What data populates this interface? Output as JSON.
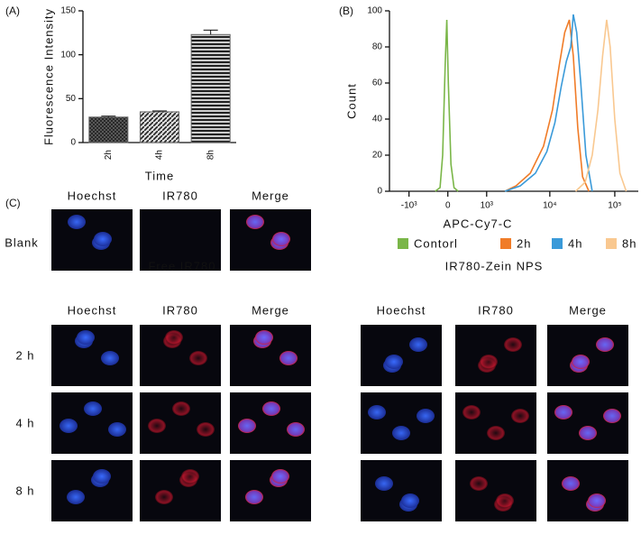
{
  "panel_labels": [
    "(A)",
    "(B)",
    "(C)"
  ],
  "chart_data": [
    {
      "type": "bar",
      "categories": [
        "2h",
        "4h",
        "8h"
      ],
      "values": [
        29,
        35,
        123
      ],
      "errors": [
        1,
        1,
        5
      ],
      "ylim": [
        0,
        150
      ],
      "yticks": [
        0,
        50,
        100,
        150
      ],
      "ylabel": "Fluorescence Intensity",
      "xlabel": "Time"
    },
    {
      "type": "line",
      "xscale": "biexponential",
      "xlabel": "APC-Cy7-C",
      "ylabel": "Count",
      "legend": "bottom",
      "xlim": [
        -2100,
        230000
      ],
      "xticks": [
        {
          "value": -1000,
          "label": "-10³"
        },
        0,
        {
          "value": 1000,
          "label": "10³"
        },
        {
          "value": 10000,
          "label": "10⁴"
        },
        {
          "value": 100000,
          "label": "10⁵"
        }
      ],
      "ylim": [
        0,
        100
      ],
      "yticks": [
        0,
        20,
        40,
        60,
        80,
        100
      ],
      "series": [
        {
          "name": "Contorl",
          "color": "#7ab648",
          "x": [
            -250,
            -150,
            -100,
            -50,
            -20,
            10,
            60,
            120,
            200
          ],
          "values": [
            0,
            2,
            20,
            70,
            95,
            60,
            15,
            2,
            0
          ]
        },
        {
          "name": "2h",
          "color": "#f07c28",
          "x": [
            2000,
            3000,
            5000,
            8000,
            11000,
            14000,
            17000,
            20000,
            23000,
            27000,
            32000,
            40000
          ],
          "values": [
            0,
            3,
            10,
            25,
            45,
            70,
            88,
            95,
            75,
            35,
            8,
            0
          ]
        },
        {
          "name": "4h",
          "color": "#3a9ad9",
          "x": [
            2000,
            3500,
            6000,
            9000,
            12000,
            15000,
            18000,
            21000,
            23000,
            26000,
            30000,
            36000,
            45000
          ],
          "values": [
            0,
            3,
            10,
            22,
            38,
            58,
            72,
            80,
            98,
            88,
            60,
            20,
            0
          ]
        },
        {
          "name": "8h",
          "color": "#f9c890",
          "x": [
            25000,
            35000,
            45000,
            55000,
            65000,
            75000,
            85000,
            100000,
            120000,
            150000
          ],
          "values": [
            0,
            5,
            20,
            45,
            75,
            95,
            80,
            40,
            10,
            0
          ]
        }
      ]
    }
  ],
  "microscopy": {
    "top_headers": [
      "Hoechst",
      "IR780",
      "Merge"
    ],
    "blank_label": "Blank",
    "row_labels": [
      "2 h",
      "4 h",
      "8 h"
    ],
    "groups": [
      {
        "title": "Free IR780",
        "headers": [
          "Hoechst",
          "IR780",
          "Merge"
        ]
      },
      {
        "title": "IR780-Zein NPS",
        "headers": [
          "Hoechst",
          "IR780",
          "Merge"
        ]
      }
    ]
  }
}
